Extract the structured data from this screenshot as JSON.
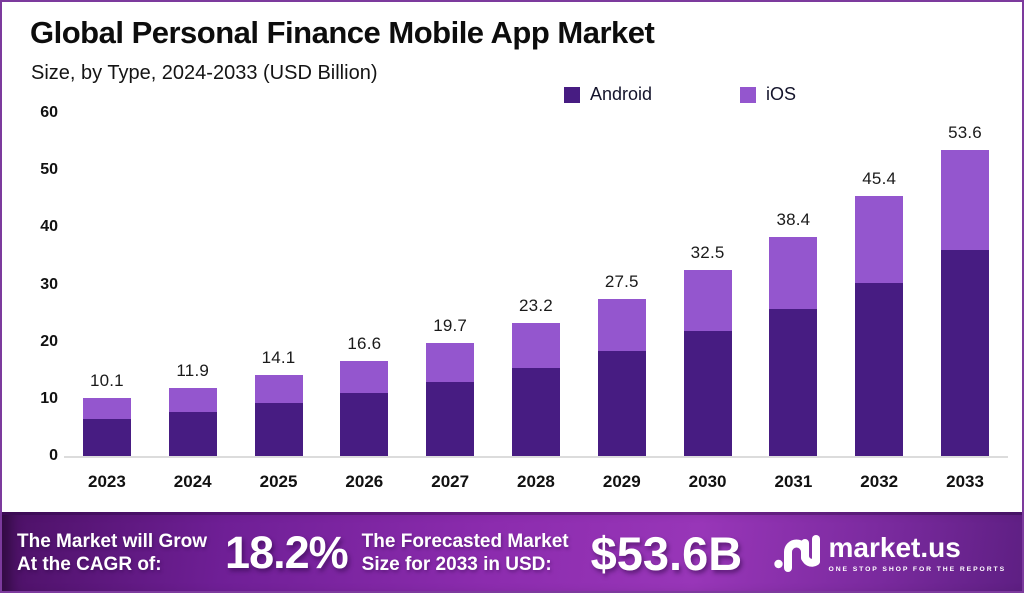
{
  "title": "Global Personal Finance Mobile App Market",
  "subtitle": "Size, by Type, 2024-2033 (USD Billion)",
  "colors": {
    "android": "#471c82",
    "ios": "#9456ce",
    "frame_border": "#7c3a9d",
    "banner_gradient_start": "#4c1166",
    "banner_gradient_mid": "#9836b8",
    "banner_gradient_end": "#5e1f83",
    "axis_text": "#111111",
    "baseline": "#dcdcdc"
  },
  "chart_data": {
    "type": "bar",
    "stacked": true,
    "title": "Global Personal Finance Mobile App Market",
    "subtitle": "Size, by Type, 2024-2033 (USD Billion)",
    "xlabel": "",
    "ylabel": "",
    "ylim": [
      0,
      60
    ],
    "yticks": [
      0,
      10,
      20,
      30,
      40,
      50,
      60
    ],
    "grid": false,
    "legend_position": "top-right",
    "categories": [
      "2023",
      "2024",
      "2025",
      "2026",
      "2027",
      "2028",
      "2029",
      "2030",
      "2031",
      "2032",
      "2033"
    ],
    "series": [
      {
        "name": "Android",
        "color": "#471c82",
        "values": [
          6.5,
          7.7,
          9.3,
          11.1,
          13.0,
          15.4,
          18.4,
          21.8,
          25.8,
          30.3,
          36.0
        ]
      },
      {
        "name": "iOS",
        "color": "#9456ce",
        "values": [
          3.6,
          4.2,
          4.8,
          5.5,
          6.7,
          7.8,
          9.1,
          10.7,
          12.6,
          15.1,
          17.6
        ]
      }
    ],
    "totals": [
      "10.1",
      "11.9",
      "14.1",
      "16.6",
      "19.7",
      "23.2",
      "27.5",
      "32.5",
      "38.4",
      "45.4",
      "53.6"
    ]
  },
  "legend": {
    "items": [
      {
        "label": "Android",
        "color": "#471c82"
      },
      {
        "label": "iOS",
        "color": "#9456ce"
      }
    ]
  },
  "banner": {
    "cagr_intro_line1": "The Market will Grow",
    "cagr_intro_line2": "At the CAGR of:",
    "cagr_value": "18.2%",
    "forecast_intro_line1": "The Forecasted Market",
    "forecast_intro_line2": "Size for 2033 in USD:",
    "forecast_value": "$53.6B",
    "logo_name": "market.us",
    "logo_tagline": "ONE STOP SHOP FOR THE REPORTS"
  }
}
